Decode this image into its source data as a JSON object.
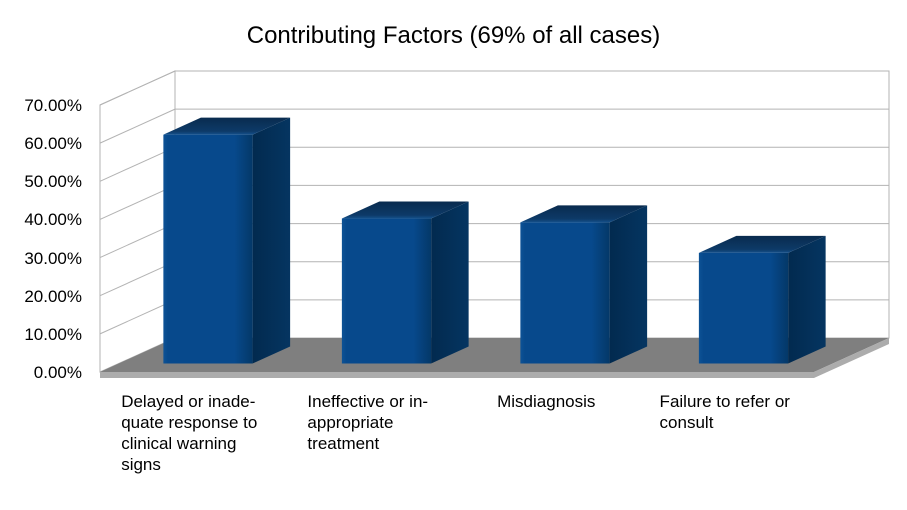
{
  "colors": {
    "background": "#FFFFFF",
    "text": "#000000",
    "grid_line": "#B3B3B3",
    "wall_fill": "#FFFFFF",
    "floor_top": "#7F7F7F",
    "floor_edge": "#ACACAC",
    "bar_front": "#07498C",
    "bar_front_light": "#0D5296",
    "bar_front_dark": "#043868",
    "bar_side": "#053561",
    "bar_side_dark": "#022A4F",
    "bar_top_front": "#15518C",
    "bar_top": "#0D3A68",
    "bar_top_back": "#092B4E"
  },
  "chart_data": {
    "type": "bar",
    "style": "3d-column",
    "title": "Contributing Factors (69% of all cases)",
    "categories": [
      "Delayed or inadequate response to clinical warning signs",
      "Ineffective or inappropriate treatment",
      "Misdiagnosis",
      "Failure to refer or consult"
    ],
    "category_display_lines": [
      [
        "Delayed or inade-",
        "quate response to",
        "clinical warning",
        "signs"
      ],
      [
        "Ineffective or in-",
        "appropriate",
        "treatment"
      ],
      [
        "Misdiagnosis"
      ],
      [
        "Failure to refer or",
        "consult"
      ]
    ],
    "values": [
      60,
      38,
      37,
      29
    ],
    "unit": "%",
    "ylim": [
      0,
      70
    ],
    "ytick_step": 10,
    "ytick_labels": [
      "0.00%",
      "10.00%",
      "20.00%",
      "30.00%",
      "40.00%",
      "50.00%",
      "60.00%",
      "70.00%"
    ],
    "grid": true,
    "legend": false
  }
}
